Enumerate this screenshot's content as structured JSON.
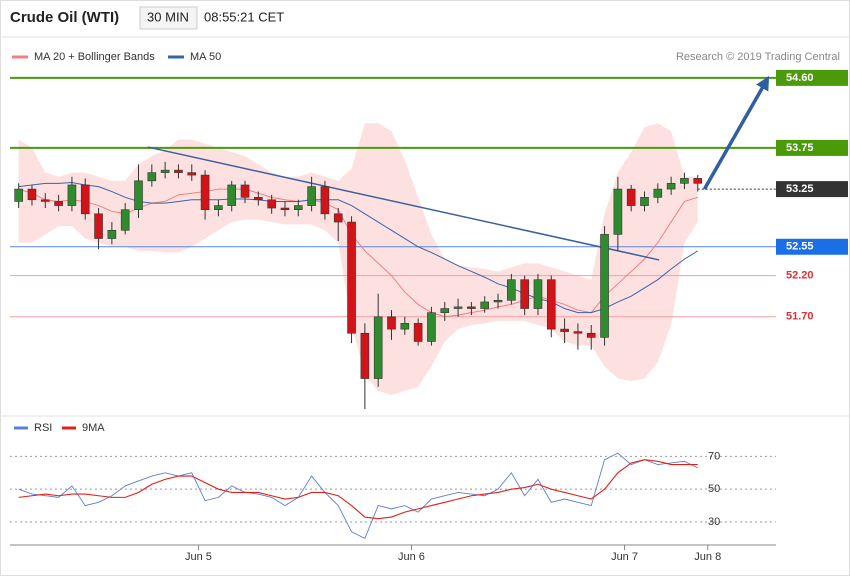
{
  "header": {
    "title": "Crude Oil (WTI)",
    "interval": "30 MIN",
    "time": "08:55:21 CET"
  },
  "chart_data": [
    {
      "type": "candlestick",
      "credit": "Research © 2019 Trading Central",
      "xlim": [
        0,
        57
      ],
      "ylim": [
        50.55,
        54.72
      ],
      "up_color": "#2e8b2e",
      "down_color": "#d0141a",
      "x": [
        0.5,
        1.5,
        2.5,
        3.5,
        4.5,
        5.5,
        6.5,
        7.5,
        8.5,
        9.5,
        10.5,
        11.5,
        12.5,
        13.5,
        14.5,
        15.5,
        16.5,
        17.5,
        18.5,
        19.5,
        20.5,
        21.5,
        22.5,
        23.5,
        24.5,
        25.5,
        26.5,
        27.5,
        28.5,
        29.5,
        30.5,
        31.5,
        32.5,
        33.5,
        34.5,
        35.5,
        36.5,
        37.5,
        38.5,
        39.5,
        40.5,
        41.5,
        42.5,
        43.5,
        44.5,
        45.5,
        46.5,
        47.5,
        48.5,
        49.5,
        50.5,
        51.5
      ],
      "open": [
        53.1,
        53.25,
        53.12,
        53.1,
        53.05,
        53.3,
        52.95,
        52.65,
        52.75,
        53.0,
        53.35,
        53.45,
        53.48,
        53.45,
        53.42,
        53.0,
        53.05,
        53.3,
        53.15,
        53.12,
        53.02,
        53.0,
        53.05,
        53.28,
        52.95,
        52.85,
        51.5,
        50.95,
        51.7,
        51.55,
        51.62,
        51.4,
        51.75,
        51.8,
        51.82,
        51.8,
        51.88,
        51.9,
        52.15,
        51.8,
        52.15,
        51.55,
        51.52,
        51.5,
        51.45,
        52.7,
        53.25,
        53.05,
        53.15,
        53.25,
        53.32,
        53.38
      ],
      "high": [
        53.32,
        53.3,
        53.2,
        53.18,
        53.4,
        53.38,
        53.02,
        52.85,
        53.08,
        53.55,
        53.55,
        53.58,
        53.55,
        53.55,
        53.48,
        53.12,
        53.35,
        53.35,
        53.22,
        53.18,
        53.1,
        53.12,
        53.4,
        53.35,
        53.02,
        52.92,
        51.62,
        51.98,
        51.78,
        51.7,
        51.68,
        51.82,
        51.88,
        51.92,
        51.88,
        51.95,
        51.98,
        52.22,
        52.2,
        52.22,
        52.2,
        51.68,
        51.62,
        51.6,
        52.8,
        53.4,
        53.3,
        53.22,
        53.32,
        53.4,
        53.45,
        53.42
      ],
      "low": [
        53.02,
        53.05,
        53.02,
        52.98,
        52.98,
        52.88,
        52.52,
        52.58,
        52.7,
        52.9,
        53.28,
        53.38,
        53.38,
        53.35,
        52.88,
        52.92,
        52.98,
        53.08,
        53.05,
        52.95,
        52.92,
        52.92,
        52.98,
        52.88,
        52.62,
        51.38,
        50.58,
        50.85,
        51.42,
        51.48,
        51.35,
        51.35,
        51.65,
        51.7,
        51.72,
        51.75,
        51.8,
        51.85,
        51.72,
        51.72,
        51.45,
        51.38,
        51.3,
        51.3,
        51.35,
        52.5,
        52.98,
        52.98,
        53.08,
        53.18,
        53.25,
        53.22
      ],
      "close": [
        53.25,
        53.12,
        53.1,
        53.05,
        53.3,
        52.95,
        52.65,
        52.75,
        53.0,
        53.35,
        53.45,
        53.48,
        53.45,
        53.42,
        53.0,
        53.05,
        53.3,
        53.15,
        53.12,
        53.02,
        53.0,
        53.05,
        53.28,
        52.95,
        52.85,
        51.5,
        50.95,
        51.7,
        51.55,
        51.62,
        51.4,
        51.75,
        51.8,
        51.82,
        51.8,
        51.88,
        51.9,
        52.15,
        51.8,
        52.15,
        51.55,
        51.52,
        51.5,
        51.45,
        52.7,
        53.25,
        53.05,
        53.15,
        53.25,
        53.32,
        53.38,
        53.32
      ],
      "series": [
        {
          "name": "MA 20 + Bollinger Bands",
          "color": "#f08080",
          "band_color": "#fde0e0",
          "values": [
            53.25,
            53.2,
            53.12,
            53.1,
            53.12,
            53.1,
            53.05,
            52.98,
            52.95,
            53.02,
            53.08,
            53.1,
            53.18,
            53.2,
            53.22,
            53.25,
            53.25,
            53.25,
            53.2,
            53.15,
            53.12,
            53.1,
            53.12,
            53.08,
            53.0,
            52.7,
            52.5,
            52.35,
            52.2,
            52.0,
            51.85,
            51.75,
            51.7,
            51.72,
            51.75,
            51.78,
            51.82,
            51.85,
            51.9,
            51.95,
            51.9,
            51.85,
            51.78,
            51.75,
            51.95,
            52.1,
            52.25,
            52.4,
            52.6,
            52.85,
            53.1,
            53.15
          ],
          "upper": [
            53.85,
            53.75,
            53.45,
            53.4,
            53.45,
            53.45,
            53.4,
            53.35,
            53.35,
            53.55,
            53.65,
            53.72,
            53.85,
            53.85,
            53.8,
            53.75,
            53.7,
            53.65,
            53.55,
            53.45,
            53.4,
            53.4,
            53.45,
            53.4,
            53.35,
            53.5,
            54.05,
            54.05,
            53.95,
            53.6,
            53.15,
            52.7,
            52.4,
            52.32,
            52.3,
            52.28,
            52.25,
            52.3,
            52.35,
            52.35,
            52.3,
            52.25,
            52.2,
            52.15,
            52.95,
            53.45,
            53.7,
            54.0,
            54.05,
            53.95,
            53.4,
            53.4
          ],
          "lower": [
            52.6,
            52.6,
            52.7,
            52.8,
            52.8,
            52.65,
            52.6,
            52.55,
            52.55,
            52.5,
            52.5,
            52.48,
            52.48,
            52.55,
            52.65,
            52.75,
            52.85,
            52.88,
            52.88,
            52.85,
            52.82,
            52.82,
            52.82,
            52.75,
            52.6,
            51.6,
            51.0,
            50.8,
            50.75,
            50.8,
            50.85,
            51.1,
            51.4,
            51.55,
            51.6,
            51.62,
            51.65,
            51.65,
            51.65,
            51.6,
            51.55,
            51.4,
            51.35,
            51.35,
            51.1,
            50.95,
            50.92,
            50.95,
            51.15,
            51.6,
            52.6,
            52.85
          ]
        },
        {
          "name": "MA 50",
          "color": "#3a63a8",
          "values": [
            53.28,
            53.3,
            53.32,
            53.32,
            53.33,
            53.3,
            53.28,
            53.22,
            53.15,
            53.1,
            53.08,
            53.08,
            53.1,
            53.12,
            53.12,
            53.12,
            53.13,
            53.13,
            53.12,
            53.1,
            53.1,
            53.1,
            53.12,
            53.12,
            53.12,
            53.05,
            52.95,
            52.85,
            52.75,
            52.65,
            52.55,
            52.48,
            52.4,
            52.32,
            52.25,
            52.18,
            52.1,
            52.05,
            51.98,
            51.92,
            51.88,
            51.8,
            51.75,
            51.75,
            51.8,
            51.88,
            51.95,
            52.05,
            52.15,
            52.28,
            52.4,
            52.5
          ]
        }
      ],
      "levels": [
        {
          "value": 54.6,
          "label": "54.60",
          "color": "#4a9a0a",
          "width": 2,
          "style": "solid",
          "box_color": "#4a9a0a",
          "text_color": "#ffffff"
        },
        {
          "value": 53.75,
          "label": "53.75",
          "color": "#4a9a0a",
          "width": 2,
          "style": "solid",
          "box_color": "#4a9a0a",
          "text_color": "#ffffff"
        },
        {
          "value": 53.25,
          "label": "53.25",
          "color": "#333333",
          "width": 1,
          "style": "dotted",
          "box_color": "#333333",
          "text_color": "#ffffff"
        },
        {
          "value": 52.55,
          "label": "52.55",
          "color": "#5a86e0",
          "width": 1,
          "style": "solid",
          "box_color": "#1a6ee6",
          "text_color": "#ffffff"
        },
        {
          "value": 52.2,
          "label": "52.20",
          "color": "#f4a0a0",
          "width": 1,
          "style": "solid",
          "text_color": "#e03030"
        },
        {
          "value": 51.7,
          "label": "51.70",
          "color": "#f4a0a0",
          "width": 1,
          "style": "solid",
          "text_color": "#e03030"
        }
      ],
      "trend_lines": [
        {
          "x": [
            10.2,
            48.6
          ],
          "y": [
            53.76,
            52.39
          ],
          "color": "#3c5fa0",
          "width": 1.5
        },
        {
          "x": [
            52.0,
            56.6
          ],
          "y": [
            53.25,
            54.55
          ],
          "color": "#2f5fa0",
          "width": 3.5,
          "arrow": true
        }
      ]
    },
    {
      "type": "line",
      "xlim": [
        0,
        57
      ],
      "ylim": [
        19,
        80
      ],
      "yticks": [
        30,
        50,
        70
      ],
      "xticks": [
        {
          "value": 14,
          "label": "Jun 5"
        },
        {
          "value": 30,
          "label": "Jun 6"
        },
        {
          "value": 46,
          "label": "Jun 7"
        },
        {
          "value": 52.25,
          "label": "Jun 8"
        }
      ],
      "x": [
        0.5,
        1.5,
        2.5,
        3.5,
        4.5,
        5.5,
        6.5,
        7.5,
        8.5,
        9.5,
        10.5,
        11.5,
        12.5,
        13.5,
        14.5,
        15.5,
        16.5,
        17.5,
        18.5,
        19.5,
        20.5,
        21.5,
        22.5,
        23.5,
        24.5,
        25.5,
        26.5,
        27.5,
        28.5,
        29.5,
        30.5,
        31.5,
        32.5,
        33.5,
        34.5,
        35.5,
        36.5,
        37.5,
        38.5,
        39.5,
        40.5,
        41.5,
        42.5,
        43.5,
        44.5,
        45.5,
        46.5,
        47.5,
        48.5,
        49.5,
        50.5,
        51.5
      ],
      "series": [
        {
          "name": "RSI",
          "color": "#5b7fd6",
          "values": [
            50,
            47,
            46,
            45,
            52,
            40,
            42,
            46,
            52,
            55,
            58,
            60,
            58,
            60,
            43,
            45,
            52,
            48,
            47,
            45,
            40,
            45,
            58,
            48,
            40,
            24,
            20,
            40,
            38,
            40,
            36,
            44,
            46,
            48,
            47,
            46,
            50,
            60,
            46,
            56,
            42,
            44,
            42,
            40,
            68,
            72,
            65,
            68,
            65,
            66,
            67,
            63
          ]
        },
        {
          "name": "9MA",
          "color": "#e0201a",
          "values": [
            45,
            46,
            47,
            46,
            47,
            47,
            46,
            45,
            45,
            48,
            53,
            56,
            58,
            58,
            54,
            50,
            48,
            48,
            48,
            46,
            44,
            45,
            48,
            48,
            46,
            40,
            33,
            32,
            33,
            36,
            38,
            40,
            42,
            44,
            46,
            47,
            48,
            50,
            51,
            53,
            50,
            48,
            46,
            44,
            50,
            60,
            66,
            68,
            67,
            65,
            65,
            65
          ]
        }
      ]
    }
  ]
}
